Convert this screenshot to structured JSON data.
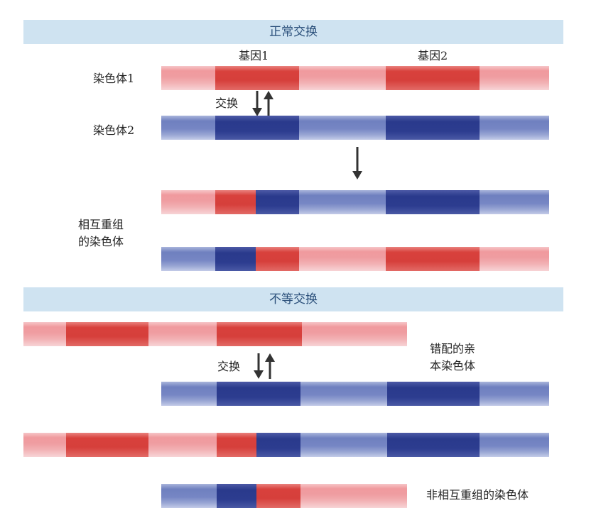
{
  "sections": {
    "normal": "正常交换",
    "unequal": "不等交换"
  },
  "labels": {
    "gene1": "基因1",
    "gene2": "基因2",
    "chromosome1": "染色体1",
    "chromosome2": "染色体2",
    "exchange_top": "交换",
    "reciprocal_line1": "相互重组",
    "reciprocal_line2": "的染色体",
    "exchange_bottom": "交换",
    "mismatched_line1": "错配的亲",
    "mismatched_line2": "本染色体",
    "nonreciprocal": "非相互重组的染色体"
  },
  "colors": {
    "red_light": "#f0a0a4",
    "red_dark": "#d8413c",
    "blue_light": "#7686c4",
    "blue_dark": "#2c3c8f",
    "banner_bg": "#cfe3f1",
    "banner_text": "#2a4f7a",
    "arrow": "#333333"
  }
}
